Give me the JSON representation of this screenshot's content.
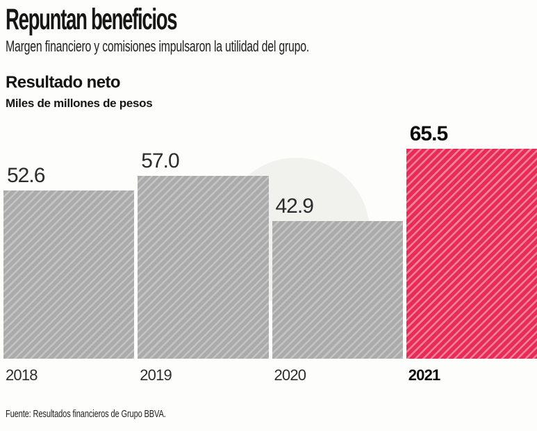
{
  "header": {
    "title": "Repuntan beneficios",
    "subtitle": "Margen financiero y comisiones impulsaron la utilidad del grupo."
  },
  "chart": {
    "title": "Resultado neto",
    "unit_label": "Miles de millones de pesos"
  },
  "chart_data": {
    "type": "bar",
    "categories": [
      "2018",
      "2019",
      "2020",
      "2021"
    ],
    "values": [
      52.6,
      57.0,
      42.9,
      65.5
    ],
    "value_labels": [
      "52.6",
      "57.0",
      "42.9",
      "65.5"
    ],
    "highlighted_index": 3,
    "title": "Resultado neto",
    "xlabel": "",
    "ylabel": "Miles de millones de pesos",
    "ylim": [
      0,
      65.5
    ],
    "grid": false,
    "legend": null,
    "bar_style": "diagonal-hatch",
    "colors": {
      "bar_base": "#ababab",
      "bar_stripe": "#c4c4c4",
      "highlight_base": "#e92c57",
      "highlight_stripe": "#f0839a"
    }
  },
  "footer": {
    "source": "Fuente: Resultados financieros de Grupo BBVA."
  }
}
